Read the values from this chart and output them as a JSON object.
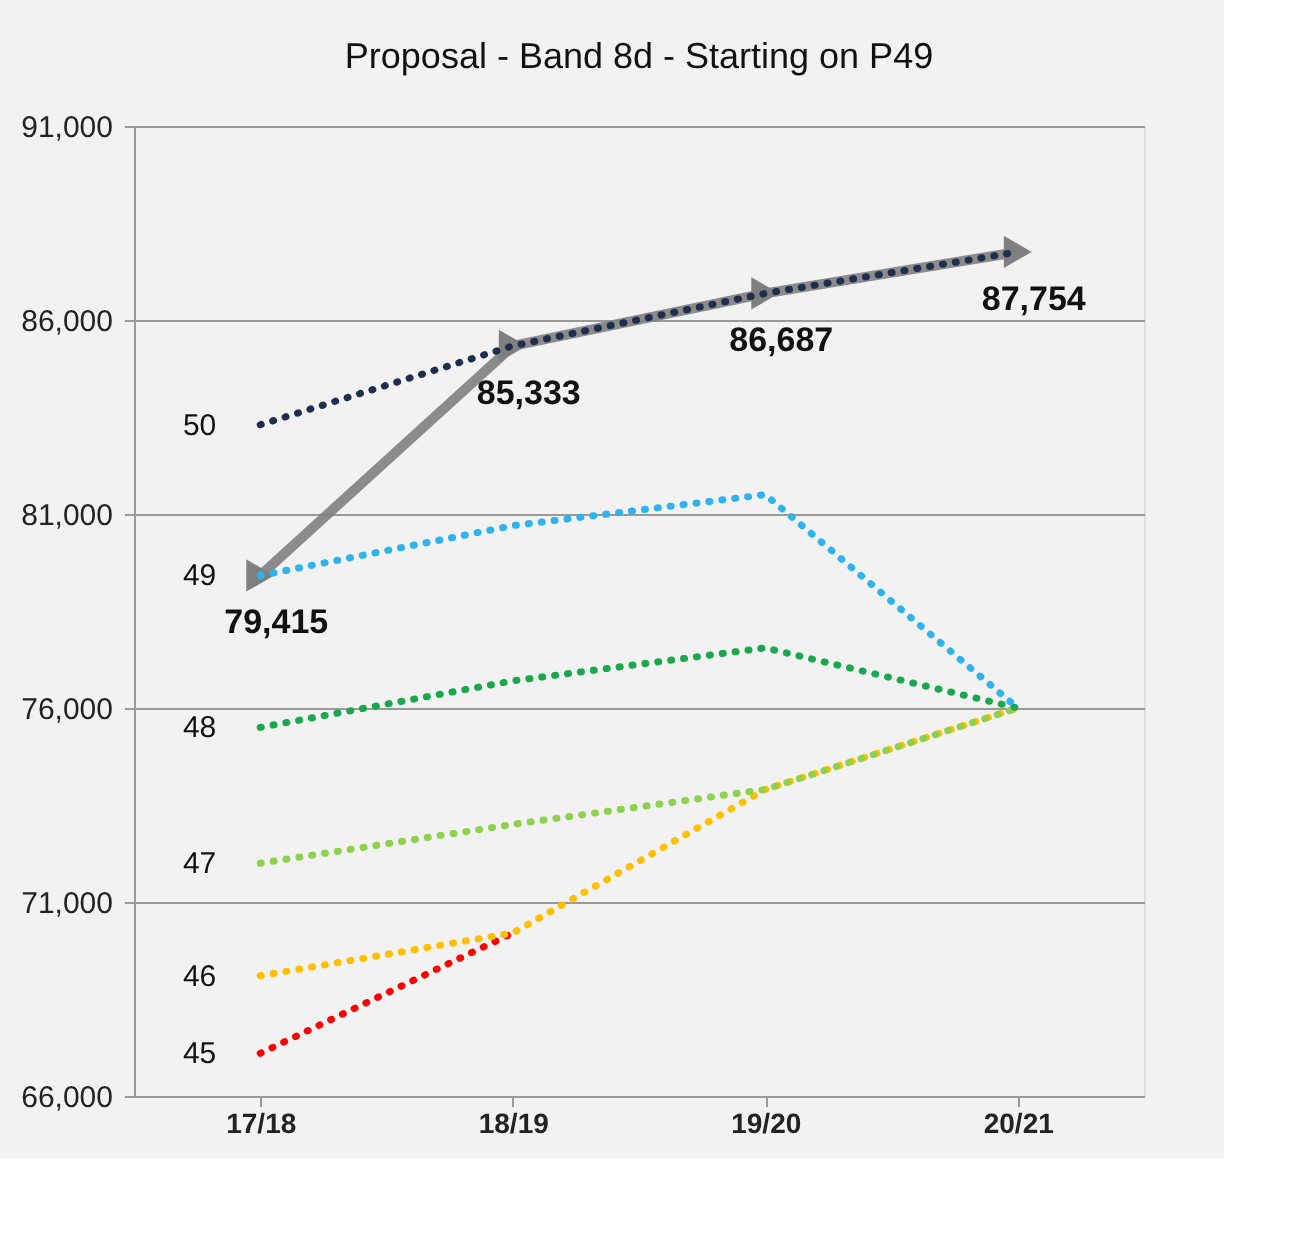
{
  "chart_data": {
    "type": "line",
    "title": "Proposal - Band 8d - Starting on P49",
    "categories": [
      "17/18",
      "18/19",
      "19/20",
      "20/21"
    ],
    "ylim": [
      66000,
      91000
    ],
    "yticks": [
      {
        "value": 66000,
        "label": "66,000"
      },
      {
        "value": 71000,
        "label": "71,000"
      },
      {
        "value": 76000,
        "label": "76,000"
      },
      {
        "value": 81000,
        "label": "81,000"
      },
      {
        "value": 86000,
        "label": "86,000"
      },
      {
        "value": 91000,
        "label": "91,000"
      }
    ],
    "grid": "y",
    "marker": "none",
    "line_style": "dotted",
    "series": [
      {
        "name": "50",
        "color": "#1f2d4e",
        "values": [
          83300,
          85333,
          86687,
          87754
        ]
      },
      {
        "name": "49",
        "color": "#2eb3ec",
        "values": [
          79415,
          80700,
          81500,
          76000
        ]
      },
      {
        "name": "48",
        "color": "#1aa84f",
        "values": [
          75500,
          76700,
          77550,
          76000
        ]
      },
      {
        "name": "47",
        "color": "#8fd14f",
        "values": [
          72000,
          73000,
          73900,
          76000
        ]
      },
      {
        "name": "46",
        "color": "#ffc000",
        "values": [
          69100,
          70200,
          73900,
          76000
        ]
      },
      {
        "name": "45",
        "color": "#ff0000",
        "values": [
          67100,
          70200,
          null,
          null
        ]
      },
      {
        "color": "#7f7f7f",
        "values": [
          79415,
          85333,
          86687,
          87754
        ],
        "line_style": "solid",
        "marker": "triangle",
        "value_labels": [
          "79,415",
          "85,333",
          "86,687",
          "87,754"
        ]
      }
    ]
  }
}
